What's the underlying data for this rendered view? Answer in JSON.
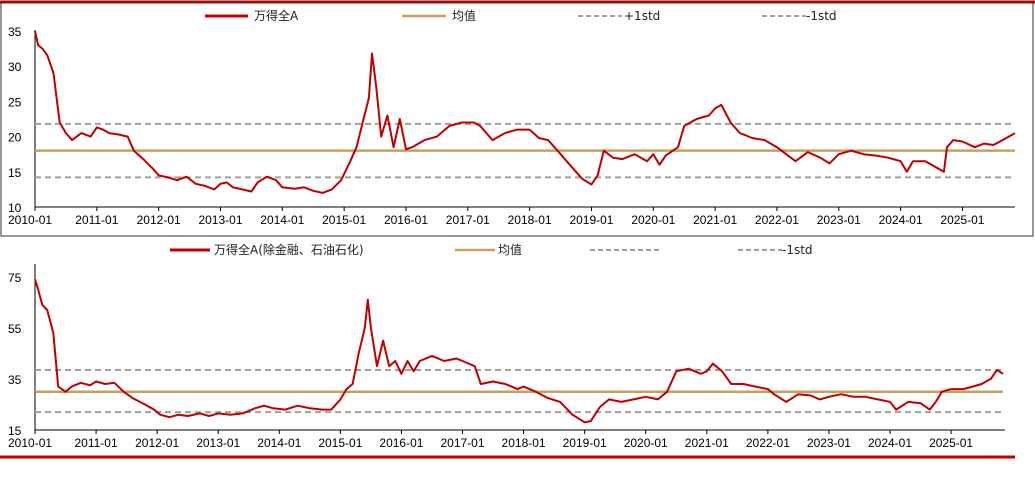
{
  "colors": {
    "main": "#C00000",
    "mean": "#C8A060",
    "std": "#A0A0A0",
    "border_top": "#C00000"
  },
  "chart_data": [
    {
      "type": "line",
      "legend": [
        "万得全A",
        "均值",
        "+1std",
        "-1std"
      ],
      "xticks": [
        "2010-01",
        "2011-01",
        "2012-01",
        "2013-01",
        "2014-01",
        "2015-01",
        "2016-01",
        "2017-01",
        "2018-01",
        "2019-01",
        "2020-01",
        "2021-01",
        "2022-01",
        "2023-01",
        "2024-01",
        "2025-01"
      ],
      "yticks": [
        10,
        15,
        20,
        25,
        30,
        35
      ],
      "ylim": [
        10,
        35
      ],
      "xlim": [
        2010.0,
        2025.85
      ],
      "mean": 18,
      "plus_std": 21.8,
      "minus_std": 14.2,
      "series": [
        {
          "name": "万得全A",
          "points": [
            [
              2010.0,
              35
            ],
            [
              2010.05,
              33
            ],
            [
              2010.12,
              32.5
            ],
            [
              2010.2,
              31.5
            ],
            [
              2010.3,
              29
            ],
            [
              2010.4,
              22
            ],
            [
              2010.5,
              20.5
            ],
            [
              2010.6,
              19.5
            ],
            [
              2010.75,
              20.5
            ],
            [
              2010.9,
              20
            ],
            [
              2011.0,
              21.3
            ],
            [
              2011.1,
              21
            ],
            [
              2011.2,
              20.5
            ],
            [
              2011.35,
              20.3
            ],
            [
              2011.5,
              20
            ],
            [
              2011.6,
              18
            ],
            [
              2011.75,
              16.8
            ],
            [
              2011.9,
              15.5
            ],
            [
              2012.0,
              14.5
            ],
            [
              2012.15,
              14.2
            ],
            [
              2012.3,
              13.8
            ],
            [
              2012.45,
              14.3
            ],
            [
              2012.6,
              13.3
            ],
            [
              2012.75,
              13
            ],
            [
              2012.9,
              12.5
            ],
            [
              2013.0,
              13.3
            ],
            [
              2013.1,
              13.5
            ],
            [
              2013.2,
              12.8
            ],
            [
              2013.35,
              12.5
            ],
            [
              2013.5,
              12.2
            ],
            [
              2013.6,
              13.5
            ],
            [
              2013.75,
              14.3
            ],
            [
              2013.9,
              13.8
            ],
            [
              2014.0,
              12.8
            ],
            [
              2014.2,
              12.6
            ],
            [
              2014.35,
              12.8
            ],
            [
              2014.5,
              12.3
            ],
            [
              2014.65,
              12
            ],
            [
              2014.8,
              12.5
            ],
            [
              2014.95,
              13.8
            ],
            [
              2015.1,
              16.5
            ],
            [
              2015.2,
              18.5
            ],
            [
              2015.3,
              22
            ],
            [
              2015.4,
              25.5
            ],
            [
              2015.45,
              31.8
            ],
            [
              2015.52,
              27
            ],
            [
              2015.6,
              20
            ],
            [
              2015.7,
              23
            ],
            [
              2015.8,
              18.5
            ],
            [
              2015.9,
              22.5
            ],
            [
              2016.0,
              18.2
            ],
            [
              2016.1,
              18.5
            ],
            [
              2016.3,
              19.5
            ],
            [
              2016.5,
              20
            ],
            [
              2016.7,
              21.5
            ],
            [
              2016.9,
              22
            ],
            [
              2017.1,
              22
            ],
            [
              2017.2,
              21.5
            ],
            [
              2017.4,
              19.5
            ],
            [
              2017.6,
              20.5
            ],
            [
              2017.8,
              21
            ],
            [
              2018.0,
              21
            ],
            [
              2018.15,
              19.8
            ],
            [
              2018.3,
              19.5
            ],
            [
              2018.5,
              17.5
            ],
            [
              2018.7,
              15.5
            ],
            [
              2018.85,
              14
            ],
            [
              2019.0,
              13.2
            ],
            [
              2019.1,
              14.5
            ],
            [
              2019.2,
              18
            ],
            [
              2019.35,
              17
            ],
            [
              2019.5,
              16.8
            ],
            [
              2019.7,
              17.5
            ],
            [
              2019.9,
              16.5
            ],
            [
              2020.0,
              17.5
            ],
            [
              2020.1,
              16
            ],
            [
              2020.2,
              17.3
            ],
            [
              2020.4,
              18.5
            ],
            [
              2020.5,
              21.5
            ],
            [
              2020.7,
              22.5
            ],
            [
              2020.9,
              23
            ],
            [
              2021.0,
              24
            ],
            [
              2021.1,
              24.5
            ],
            [
              2021.25,
              22
            ],
            [
              2021.4,
              20.5
            ],
            [
              2021.6,
              19.8
            ],
            [
              2021.8,
              19.5
            ],
            [
              2022.0,
              18.5
            ],
            [
              2022.15,
              17.5
            ],
            [
              2022.3,
              16.5
            ],
            [
              2022.5,
              17.8
            ],
            [
              2022.7,
              17
            ],
            [
              2022.85,
              16.2
            ],
            [
              2023.0,
              17.5
            ],
            [
              2023.2,
              18
            ],
            [
              2023.4,
              17.5
            ],
            [
              2023.6,
              17.3
            ],
            [
              2023.8,
              17
            ],
            [
              2024.0,
              16.5
            ],
            [
              2024.1,
              15
            ],
            [
              2024.2,
              16.5
            ],
            [
              2024.4,
              16.5
            ],
            [
              2024.6,
              15.5
            ],
            [
              2024.7,
              15
            ],
            [
              2024.75,
              18.5
            ],
            [
              2024.85,
              19.5
            ],
            [
              2025.0,
              19.3
            ],
            [
              2025.2,
              18.5
            ],
            [
              2025.35,
              19
            ],
            [
              2025.5,
              18.8
            ],
            [
              2025.65,
              19.5
            ],
            [
              2025.75,
              20
            ],
            [
              2025.85,
              20.5
            ]
          ]
        }
      ]
    },
    {
      "type": "line",
      "legend": [
        "万得全A(除金融、石油石化)",
        "均值",
        "",
        "-1std"
      ],
      "xticks": [
        "2010-01",
        "2011-01",
        "2012-01",
        "2013-01",
        "2014-01",
        "2015-01",
        "2016-01",
        "2017-01",
        "2018-01",
        "2019-01",
        "2020-01",
        "2021-01",
        "2022-01",
        "2023-01",
        "2024-01",
        "2025-01"
      ],
      "yticks": [
        15,
        35,
        55,
        75
      ],
      "ylim": [
        15,
        80
      ],
      "xlim": [
        2010.0,
        2025.85
      ],
      "mean": 30,
      "plus_std": 38.5,
      "minus_std": 22,
      "series": [
        {
          "name": "万得全A(除金融、石油石化)",
          "points": [
            [
              2010.0,
              74
            ],
            [
              2010.05,
              70
            ],
            [
              2010.12,
              64
            ],
            [
              2010.2,
              62
            ],
            [
              2010.3,
              53
            ],
            [
              2010.38,
              32
            ],
            [
              2010.5,
              30
            ],
            [
              2010.6,
              32
            ],
            [
              2010.75,
              33.5
            ],
            [
              2010.9,
              32.5
            ],
            [
              2011.0,
              34
            ],
            [
              2011.15,
              33
            ],
            [
              2011.3,
              33.5
            ],
            [
              2011.45,
              30
            ],
            [
              2011.6,
              27.5
            ],
            [
              2011.8,
              25
            ],
            [
              2011.95,
              23
            ],
            [
              2012.05,
              21
            ],
            [
              2012.2,
              20
            ],
            [
              2012.35,
              21
            ],
            [
              2012.5,
              20.5
            ],
            [
              2012.7,
              21.5
            ],
            [
              2012.85,
              20.5
            ],
            [
              2013.0,
              21.5
            ],
            [
              2013.2,
              21
            ],
            [
              2013.4,
              21.5
            ],
            [
              2013.6,
              23.5
            ],
            [
              2013.75,
              24.5
            ],
            [
              2013.9,
              23.5
            ],
            [
              2014.1,
              23
            ],
            [
              2014.3,
              24.5
            ],
            [
              2014.5,
              23.5
            ],
            [
              2014.7,
              23
            ],
            [
              2014.85,
              23
            ],
            [
              2015.0,
              27
            ],
            [
              2015.1,
              31
            ],
            [
              2015.2,
              33
            ],
            [
              2015.3,
              45
            ],
            [
              2015.4,
              55
            ],
            [
              2015.45,
              66
            ],
            [
              2015.5,
              55
            ],
            [
              2015.6,
              40
            ],
            [
              2015.7,
              50
            ],
            [
              2015.8,
              40
            ],
            [
              2015.9,
              42
            ],
            [
              2016.0,
              37
            ],
            [
              2016.1,
              42
            ],
            [
              2016.2,
              38
            ],
            [
              2016.3,
              42
            ],
            [
              2016.5,
              44
            ],
            [
              2016.7,
              42
            ],
            [
              2016.9,
              43
            ],
            [
              2017.0,
              42
            ],
            [
              2017.2,
              40
            ],
            [
              2017.3,
              33
            ],
            [
              2017.5,
              34
            ],
            [
              2017.7,
              33
            ],
            [
              2017.9,
              31
            ],
            [
              2018.0,
              32
            ],
            [
              2018.2,
              30
            ],
            [
              2018.4,
              27.5
            ],
            [
              2018.6,
              26
            ],
            [
              2018.8,
              21
            ],
            [
              2019.0,
              18
            ],
            [
              2019.1,
              18.5
            ],
            [
              2019.25,
              24
            ],
            [
              2019.4,
              27
            ],
            [
              2019.6,
              26
            ],
            [
              2019.8,
              27
            ],
            [
              2020.0,
              28
            ],
            [
              2020.2,
              27
            ],
            [
              2020.35,
              30
            ],
            [
              2020.5,
              38
            ],
            [
              2020.7,
              39
            ],
            [
              2020.9,
              37
            ],
            [
              2021.0,
              38
            ],
            [
              2021.1,
              41
            ],
            [
              2021.25,
              38
            ],
            [
              2021.4,
              33
            ],
            [
              2021.6,
              33
            ],
            [
              2021.8,
              32
            ],
            [
              2022.0,
              31
            ],
            [
              2022.1,
              29
            ],
            [
              2022.3,
              26
            ],
            [
              2022.5,
              29
            ],
            [
              2022.7,
              28.5
            ],
            [
              2022.85,
              27
            ],
            [
              2023.0,
              28
            ],
            [
              2023.2,
              29
            ],
            [
              2023.4,
              28
            ],
            [
              2023.6,
              28
            ],
            [
              2023.8,
              27
            ],
            [
              2024.0,
              26
            ],
            [
              2024.1,
              23
            ],
            [
              2024.3,
              26
            ],
            [
              2024.5,
              25.5
            ],
            [
              2024.65,
              23
            ],
            [
              2024.75,
              26
            ],
            [
              2024.85,
              30
            ],
            [
              2025.0,
              31
            ],
            [
              2025.2,
              31
            ],
            [
              2025.35,
              32
            ],
            [
              2025.5,
              33
            ],
            [
              2025.65,
              35
            ],
            [
              2025.75,
              38.5
            ],
            [
              2025.85,
              37
            ]
          ]
        }
      ]
    }
  ]
}
